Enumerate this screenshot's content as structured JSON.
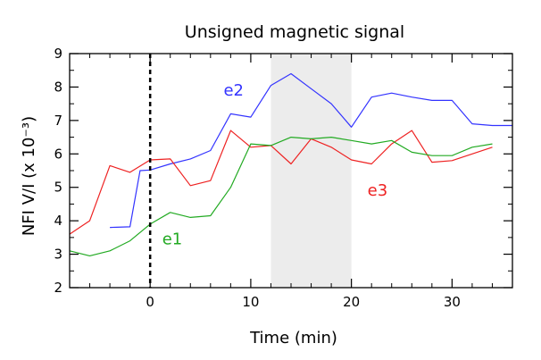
{
  "chart_data": {
    "type": "line",
    "title": "Unsigned magnetic signal",
    "xlabel": "Time (min)",
    "ylabel": "NFI V/I  (x 10⁻³)",
    "xlim": [
      -8,
      36
    ],
    "ylim": [
      2,
      9
    ],
    "x_ticks": [
      0,
      10,
      20,
      30
    ],
    "y_ticks": [
      2,
      3,
      4,
      5,
      6,
      7,
      8,
      9
    ],
    "x_minor_step": 2,
    "y_minor_step": 0.5,
    "vertical_line": {
      "x": 0,
      "style": "dashed",
      "color": "#000000"
    },
    "shaded_region": {
      "x": [
        12,
        20
      ],
      "color": "#ececec"
    },
    "series": [
      {
        "name": "e2",
        "color": "#3333ff",
        "label_pos": {
          "x": 7.3,
          "y": 7.75
        },
        "points": [
          [
            -4,
            3.8
          ],
          [
            -2,
            3.82
          ],
          [
            -1,
            5.5
          ],
          [
            0,
            5.52
          ],
          [
            2,
            5.7
          ],
          [
            4,
            5.85
          ],
          [
            6,
            6.1
          ],
          [
            8,
            7.2
          ],
          [
            10,
            7.1
          ],
          [
            12,
            8.05
          ],
          [
            14,
            8.4
          ],
          [
            16,
            7.95
          ],
          [
            18,
            7.5
          ],
          [
            20,
            6.8
          ],
          [
            22,
            7.7
          ],
          [
            24,
            7.82
          ],
          [
            26,
            7.7
          ],
          [
            28,
            7.6
          ],
          [
            30,
            7.6
          ],
          [
            32,
            6.9
          ],
          [
            34,
            6.85
          ],
          [
            36,
            6.85
          ]
        ]
      },
      {
        "name": "e3",
        "color": "#ee2222",
        "label_pos": {
          "x": 21.6,
          "y": 4.75
        },
        "points": [
          [
            -8,
            3.6
          ],
          [
            -6,
            4.0
          ],
          [
            -4,
            5.65
          ],
          [
            -2,
            5.45
          ],
          [
            0,
            5.82
          ],
          [
            2,
            5.85
          ],
          [
            4,
            5.05
          ],
          [
            6,
            5.2
          ],
          [
            8,
            6.7
          ],
          [
            10,
            6.2
          ],
          [
            12,
            6.25
          ],
          [
            14,
            5.7
          ],
          [
            16,
            6.45
          ],
          [
            18,
            6.2
          ],
          [
            20,
            5.82
          ],
          [
            22,
            5.7
          ],
          [
            24,
            6.3
          ],
          [
            26,
            6.7
          ],
          [
            28,
            5.75
          ],
          [
            30,
            5.8
          ],
          [
            32,
            6.0
          ],
          [
            34,
            6.2
          ]
        ]
      },
      {
        "name": "e1",
        "color": "#22aa22",
        "label_pos": {
          "x": 1.2,
          "y": 3.3
        },
        "points": [
          [
            -8,
            3.1
          ],
          [
            -6,
            2.95
          ],
          [
            -4,
            3.1
          ],
          [
            -2,
            3.4
          ],
          [
            0,
            3.9
          ],
          [
            2,
            4.25
          ],
          [
            4,
            4.1
          ],
          [
            6,
            4.15
          ],
          [
            8,
            5.0
          ],
          [
            10,
            6.3
          ],
          [
            12,
            6.25
          ],
          [
            14,
            6.5
          ],
          [
            16,
            6.45
          ],
          [
            18,
            6.5
          ],
          [
            20,
            6.4
          ],
          [
            22,
            6.3
          ],
          [
            24,
            6.4
          ],
          [
            26,
            6.05
          ],
          [
            28,
            5.95
          ],
          [
            30,
            5.95
          ],
          [
            32,
            6.2
          ],
          [
            34,
            6.3
          ]
        ]
      }
    ]
  }
}
